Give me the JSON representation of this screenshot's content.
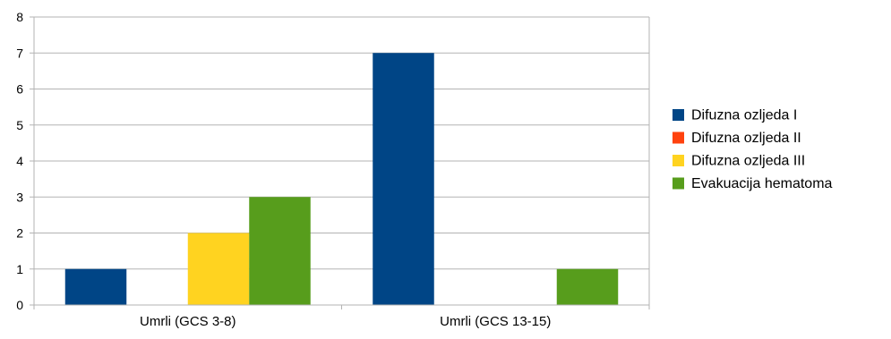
{
  "chart_data": {
    "type": "bar",
    "title": "",
    "xlabel": "",
    "ylabel": "",
    "categories": [
      "Umrli (GCS 3-8)",
      "Umrli (GCS 13-15)"
    ],
    "ylim": [
      0,
      8
    ],
    "yticks": [
      0,
      1,
      2,
      3,
      4,
      5,
      6,
      7,
      8
    ],
    "grid": true,
    "legend_position": "right",
    "series": [
      {
        "name": "Difuzna ozljeda I",
        "color": "#004586",
        "values": [
          1,
          7
        ]
      },
      {
        "name": "Difuzna ozljeda II",
        "color": "#ff420e",
        "values": [
          0,
          0
        ]
      },
      {
        "name": "Difuzna ozljeda III",
        "color": "#ffd320",
        "values": [
          2,
          0
        ]
      },
      {
        "name": "Evakuacija hematoma",
        "color": "#579d1c",
        "values": [
          3,
          1
        ]
      }
    ]
  }
}
